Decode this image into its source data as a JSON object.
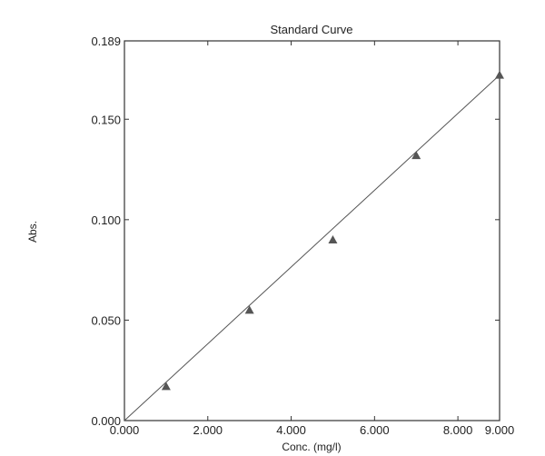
{
  "chart_data": {
    "type": "scatter",
    "title": "Standard Curve",
    "xlabel": "Conc. (mg/l)",
    "ylabel": "Abs.",
    "xlim": [
      0,
      9.0
    ],
    "ylim": [
      0,
      0.189
    ],
    "xticks": [
      0,
      2,
      4,
      6,
      8,
      9
    ],
    "xtick_labels": [
      "0.000",
      "2.000",
      "4.000",
      "6.000",
      "8.000",
      "9.000"
    ],
    "yticks": [
      0,
      0.05,
      0.1,
      0.15,
      0.189
    ],
    "ytick_labels": [
      "0.000",
      "0.050",
      "0.100",
      "0.150",
      "0.189"
    ],
    "grid": false,
    "series": [
      {
        "marker": "triangle",
        "x": [
          1,
          3,
          5,
          7,
          9
        ],
        "y": [
          0.017,
          0.055,
          0.09,
          0.132,
          0.172
        ]
      }
    ],
    "fit_line": {
      "x": [
        0,
        9
      ],
      "y": [
        0,
        0.172
      ]
    },
    "colors": {
      "marker": "#555555",
      "line": "#555555",
      "axes": "#333333"
    }
  }
}
